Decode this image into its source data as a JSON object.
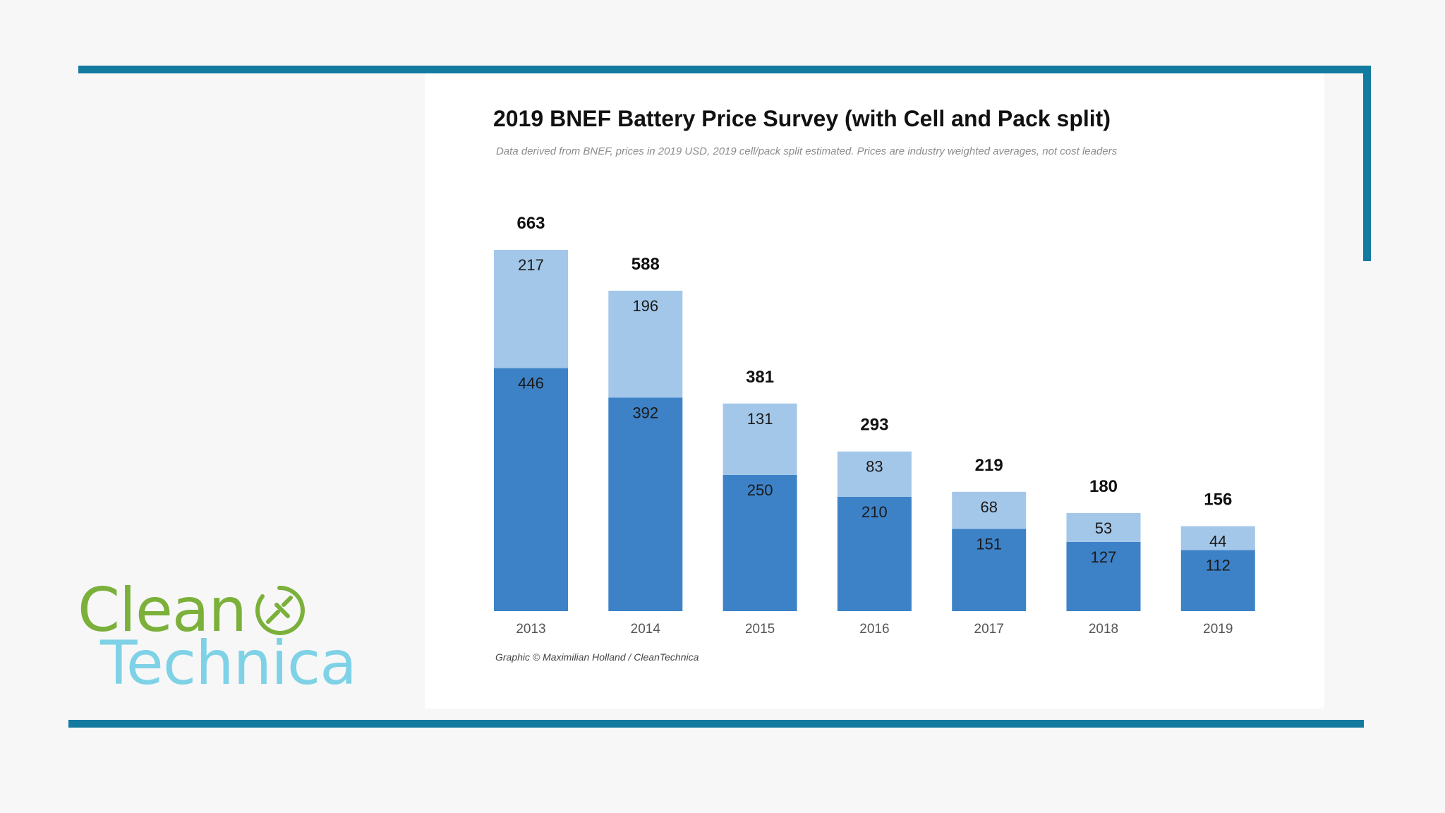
{
  "title": "2019 BNEF Battery Price Survey (with Cell and Pack split)",
  "subtitle": "Data derived from BNEF, prices in 2019 USD, 2019 cell/pack split estimated. Prices are industry weighted averages, not cost leaders",
  "credit": "Graphic © Maximilian Holland / CleanTechnica",
  "logo": {
    "line1": "Clean",
    "line2": "Technica",
    "icon": "plug-icon"
  },
  "colors": {
    "frame": "#137aa0",
    "cell": "#3d82c7",
    "pack": "#a3c7e9",
    "logo_green": "#7bb03a",
    "logo_blue": "#7fd2e6"
  },
  "chart_data": {
    "type": "bar",
    "stacked": true,
    "title": "2019 BNEF Battery Price Survey (with Cell and Pack split)",
    "categories": [
      "2013",
      "2014",
      "2015",
      "2016",
      "2017",
      "2018",
      "2019"
    ],
    "series": [
      {
        "values": [
          446,
          392,
          250,
          210,
          151,
          127,
          112
        ]
      },
      {
        "values": [
          217,
          196,
          131,
          83,
          68,
          53,
          44
        ]
      }
    ],
    "totals": [
      663,
      588,
      381,
      293,
      219,
      180,
      156
    ],
    "ylim": [
      0,
      663
    ],
    "grid": false,
    "legend": "none"
  }
}
